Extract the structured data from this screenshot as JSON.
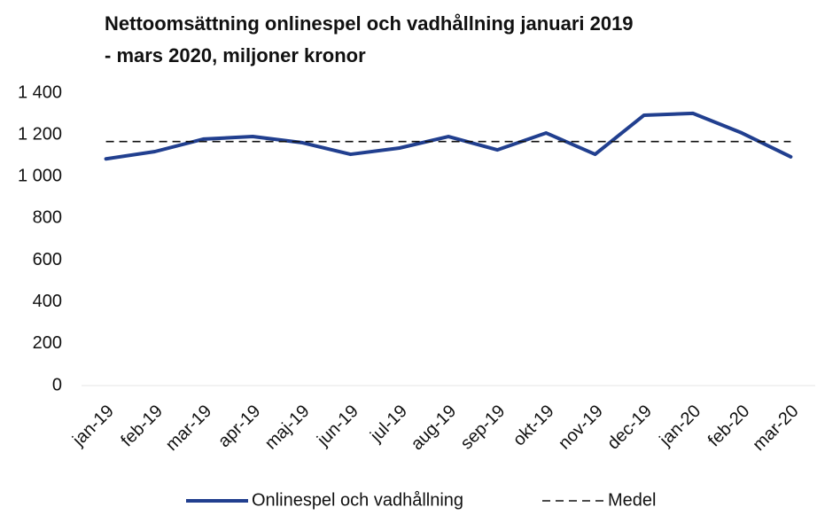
{
  "chart_data": {
    "type": "line",
    "title": [
      "Nettoomsättning onlinespel och vadhållning januari 2019",
      "- mars 2020, miljoner kronor"
    ],
    "categories": [
      "jan-19",
      "feb-19",
      "mar-19",
      "apr-19",
      "maj-19",
      "jun-19",
      "jul-19",
      "aug-19",
      "sep-19",
      "okt-19",
      "nov-19",
      "dec-19",
      "jan-20",
      "feb-20",
      "mar-20"
    ],
    "series": [
      {
        "name": "Onlinespel och vadhållning",
        "color": "#213f8f",
        "style": "solid",
        "values": [
          1085,
          1120,
          1180,
          1192,
          1163,
          1107,
          1137,
          1192,
          1128,
          1209,
          1107,
          1294,
          1303,
          1209,
          1095
        ]
      },
      {
        "name": "Medel",
        "color": "#111111",
        "style": "dashed",
        "values": [
          1168,
          1168,
          1168,
          1168,
          1168,
          1168,
          1168,
          1168,
          1168,
          1168,
          1168,
          1168,
          1168,
          1168,
          1168
        ]
      }
    ],
    "ylim": [
      0,
      1400
    ],
    "yticks": [
      0,
      200,
      400,
      600,
      800,
      {
        "value": 1000,
        "label": "1 000"
      },
      {
        "value": 1200,
        "label": "1 200"
      },
      {
        "value": 1400,
        "label": "1 400"
      }
    ],
    "grid": false,
    "legend": "bottom"
  }
}
